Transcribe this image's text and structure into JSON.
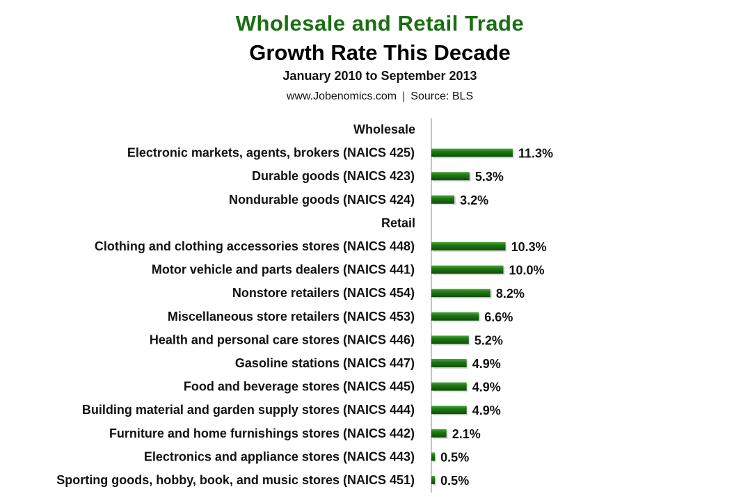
{
  "chart_data": {
    "type": "bar",
    "orientation": "horizontal",
    "title": "Wholesale and Retail Trade",
    "subtitle": "Growth Rate This Decade",
    "period": "January  2010 to September 2013",
    "source_site": "www.Jobenomics.com",
    "source_separator": "|",
    "source": "Source: BLS",
    "xlim": [
      0,
      12
    ],
    "grid": false,
    "bar_color": "#1e7a14",
    "rows": [
      {
        "label": "Wholesale",
        "header": true
      },
      {
        "label": "Electronic markets, agents, brokers  (NAICS 425)",
        "value": 11.3,
        "value_label": "11.3%"
      },
      {
        "label": "Durable goods  (NAICS 423)",
        "value": 5.3,
        "value_label": "5.3%"
      },
      {
        "label": "Nondurable goods  (NAICS 424)",
        "value": 3.2,
        "value_label": "3.2%"
      },
      {
        "label": "Retail",
        "header": true
      },
      {
        "label": "Clothing and clothing accessories stores (NAICS 448)",
        "value": 10.3,
        "value_label": "10.3%"
      },
      {
        "label": "Motor vehicle and parts dealers  (NAICS 441)",
        "value": 10.0,
        "value_label": "10.0%"
      },
      {
        "label": "Nonstore retailers (NAICS 454)",
        "value": 8.2,
        "value_label": "8.2%"
      },
      {
        "label": "Miscellaneous store retailers (NAICS 453)",
        "value": 6.6,
        "value_label": "6.6%"
      },
      {
        "label": "Health and personal care stores (NAICS 446)",
        "value": 5.2,
        "value_label": "5.2%"
      },
      {
        "label": "Gasoline stations (NAICS 447)",
        "value": 4.9,
        "value_label": "4.9%"
      },
      {
        "label": "Food and beverage stores (NAICS 445)",
        "value": 4.9,
        "value_label": "4.9%"
      },
      {
        "label": "Building material and garden supply stores (NAICS 444)",
        "value": 4.9,
        "value_label": "4.9%"
      },
      {
        "label": "Furniture and home furnishings stores  (NAICS 442)",
        "value": 2.1,
        "value_label": "2.1%"
      },
      {
        "label": "Electronics and appliance stores  (NAICS 443)",
        "value": 0.5,
        "value_label": "0.5%"
      },
      {
        "label": "Sporting goods, hobby, book, and music stores (NAICS 451)",
        "value": 0.5,
        "value_label": "0.5%"
      }
    ]
  }
}
